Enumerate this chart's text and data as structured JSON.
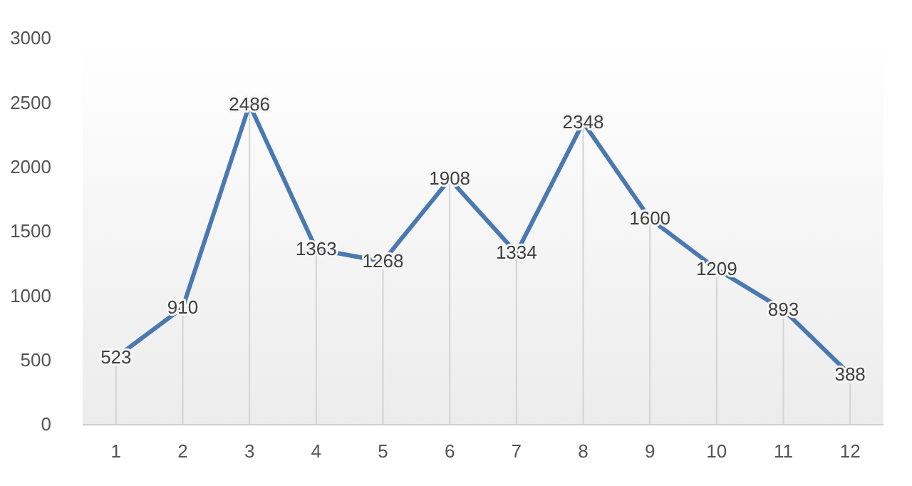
{
  "chart_data": {
    "type": "line",
    "x": [
      1,
      2,
      3,
      4,
      5,
      6,
      7,
      8,
      9,
      10,
      11,
      12
    ],
    "series": [
      {
        "color": "#4a78b0",
        "values": [
          523,
          910,
          2486,
          1363,
          1268,
          1908,
          1334,
          2348,
          1600,
          1209,
          893,
          388
        ]
      }
    ],
    "xlim": [
      0.5,
      12.5
    ],
    "xticks": [
      1,
      2,
      3,
      4,
      5,
      6,
      7,
      8,
      9,
      10,
      11,
      12
    ],
    "ylim": [
      0,
      3000
    ],
    "yticks": [
      0,
      500,
      1000,
      1500,
      2000,
      2500,
      3000
    ],
    "data_labels": true,
    "marker": "none",
    "line_style": "solid"
  }
}
